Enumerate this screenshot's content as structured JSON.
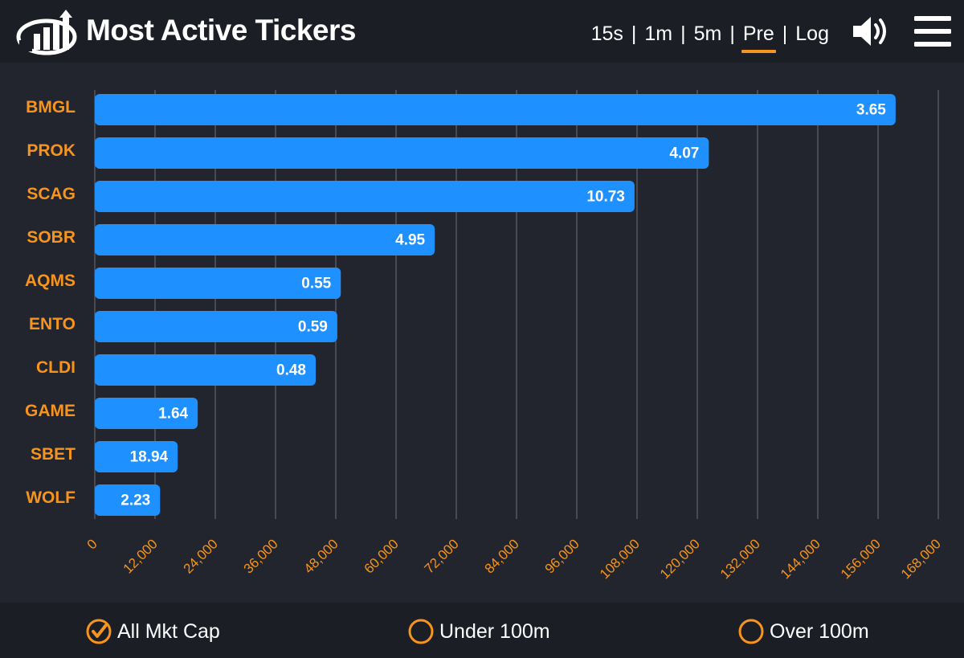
{
  "header": {
    "title": "Most Active Tickers",
    "timeframes": [
      {
        "label": "15s",
        "active": false
      },
      {
        "label": "1m",
        "active": false
      },
      {
        "label": "5m",
        "active": false
      },
      {
        "label": "Pre",
        "active": true
      },
      {
        "label": "Log",
        "active": false
      }
    ],
    "separator": "|",
    "icons": {
      "logo": "bar-chart-logo-icon",
      "speaker": "speaker-icon",
      "menu": "hamburger-menu-icon"
    }
  },
  "colors": {
    "bar": "#1e90ff",
    "ticker_label": "#f7941d",
    "tick_label": "#f7941d",
    "gridline": "#6b6f78",
    "value_label": "#ffffff",
    "accent": "#f7941d"
  },
  "chart_data": {
    "type": "bar",
    "orientation": "horizontal",
    "title": "",
    "xlabel": "",
    "ylabel": "",
    "xlim": [
      0,
      168000
    ],
    "x_ticks": [
      0,
      12000,
      24000,
      36000,
      48000,
      60000,
      72000,
      84000,
      96000,
      108000,
      120000,
      132000,
      144000,
      156000,
      168000
    ],
    "x_tick_labels": [
      "0",
      "12,000",
      "24,000",
      "36,000",
      "48,000",
      "60,000",
      "72,000",
      "84,000",
      "96,000",
      "108,000",
      "120,000",
      "132,000",
      "144,000",
      "156,000",
      "168,000"
    ],
    "grid": true,
    "categories": [
      "BMGL",
      "PROK",
      "SCAG",
      "SOBR",
      "AQMS",
      "ENTO",
      "CLDI",
      "GAME",
      "SBET",
      "WOLF"
    ],
    "values": [
      159500,
      122300,
      107500,
      67700,
      49000,
      48300,
      44000,
      20500,
      16500,
      13000
    ],
    "bar_labels": [
      "3.65",
      "4.07",
      "10.73",
      "4.95",
      "0.55",
      "0.59",
      "0.48",
      "1.64",
      "18.94",
      "2.23"
    ]
  },
  "footer": {
    "filters": [
      {
        "label": "All Mkt Cap",
        "checked": true
      },
      {
        "label": "Under 100m",
        "checked": false
      },
      {
        "label": "Over 100m",
        "checked": false
      }
    ]
  }
}
